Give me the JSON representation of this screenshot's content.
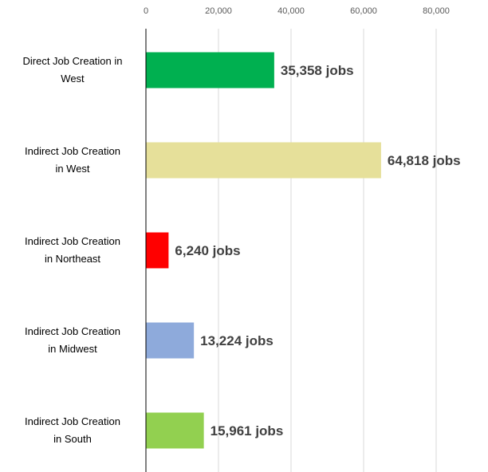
{
  "chart_data": {
    "type": "bar",
    "orientation": "horizontal",
    "categories": [
      [
        "Direct Job Creation in",
        "West"
      ],
      [
        "Indirect Job Creation",
        "in West"
      ],
      [
        "Indirect Job Creation",
        "in Northeast"
      ],
      [
        "Indirect Job Creation",
        "in Midwest"
      ],
      [
        "Indirect Job Creation",
        "in South"
      ]
    ],
    "values": [
      35358,
      64818,
      6240,
      13224,
      15961
    ],
    "data_labels": [
      "35,358 jobs",
      "64,818 jobs",
      "6,240 jobs",
      "13,224 jobs",
      "15,961 jobs"
    ],
    "colors": [
      "#00b050",
      "#e6e09a",
      "#ff0000",
      "#8eaadb",
      "#92d050"
    ],
    "xlim": [
      0,
      80000
    ],
    "xticks": [
      0,
      20000,
      40000,
      60000,
      80000
    ],
    "xtick_labels": [
      "0",
      "20,000",
      "40,000",
      "60,000",
      "80,000"
    ],
    "x_axis_position": "top",
    "grid": true,
    "title": "",
    "xlabel": "",
    "ylabel": ""
  }
}
